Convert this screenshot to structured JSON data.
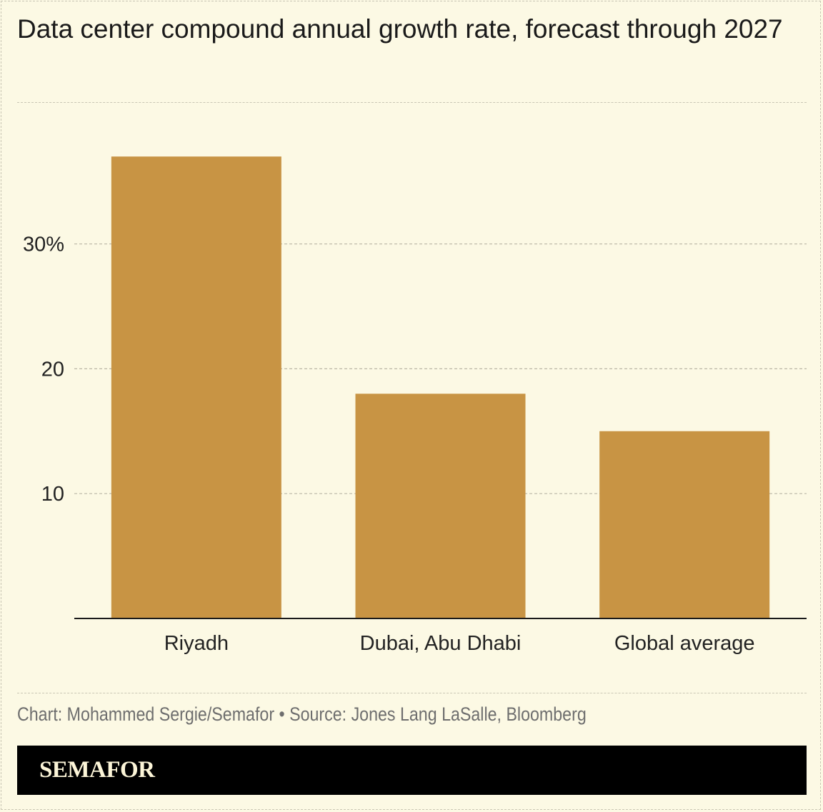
{
  "title": "Data center compound annual growth rate, forecast through 2027",
  "source_line": "Chart: Mohammed Sergie/Semafor • Source: Jones Lang LaSalle, Bloomberg",
  "brand": "SEMAFOR",
  "colors": {
    "bar": "#c89444",
    "background": "#fcf9e4",
    "grid": "#b9b6a6",
    "axis": "#1a1a1a"
  },
  "chart_data": {
    "type": "bar",
    "title": "Data center compound annual growth rate, forecast through 2027",
    "categories": [
      "Riyadh",
      "Dubai, Abu Dhabi",
      "Global average"
    ],
    "values": [
      37,
      18,
      15
    ],
    "unit": "%",
    "ylim": [
      0,
      41.3
    ],
    "yticks": [
      10,
      20,
      30
    ],
    "ytick_labels": [
      "10",
      "20",
      "30%"
    ],
    "xlabel": "",
    "ylabel": "",
    "grid": true,
    "legend": "none"
  }
}
